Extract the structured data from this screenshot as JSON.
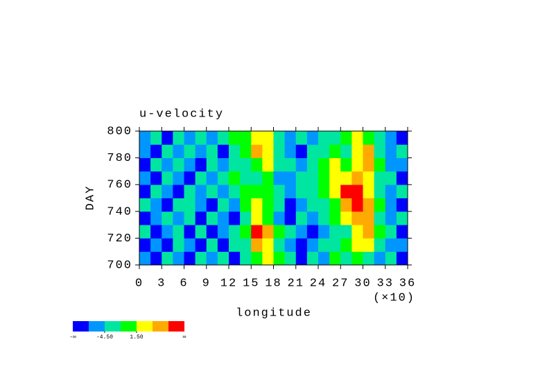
{
  "chart_data": {
    "type": "heatmap",
    "title": "u-velocity",
    "xlabel": "longitude",
    "ylabel": "DAY",
    "x_multiplier": "(×10)",
    "xlim": [
      0,
      36
    ],
    "ylim": [
      700,
      800
    ],
    "xticks": [
      0,
      3,
      6,
      9,
      12,
      15,
      18,
      21,
      24,
      27,
      30,
      33,
      36
    ],
    "yticks": [
      700,
      720,
      740,
      760,
      780,
      800
    ],
    "x": [
      0.75,
      2.25,
      3.75,
      5.25,
      6.75,
      8.25,
      9.75,
      11.25,
      12.75,
      14.25,
      15.75,
      17.25,
      18.75,
      20.25,
      21.75,
      23.25,
      24.75,
      26.25,
      27.75,
      29.25,
      30.75,
      32.25,
      33.75,
      35.25
    ],
    "y": [
      705,
      715,
      725,
      735,
      745,
      755,
      765,
      775,
      785,
      795
    ],
    "z": [
      [
        -6,
        -8,
        -3,
        -5,
        -8,
        -2,
        -5,
        -3,
        -9,
        -2,
        0,
        2,
        -1,
        -4,
        -8,
        -3,
        -5,
        -1,
        -2,
        0,
        -3,
        -6,
        -2,
        -8
      ],
      [
        -9,
        -5,
        -8,
        -3,
        -6,
        -9,
        -4,
        -8,
        -2,
        -3,
        5,
        3,
        -2,
        -5,
        -9,
        -6,
        -3,
        -4,
        -1,
        2,
        4,
        -2,
        -5,
        -6
      ],
      [
        -4,
        -9,
        -6,
        -2,
        -8,
        -4,
        -9,
        -5,
        -3,
        -1,
        8,
        6,
        0,
        -4,
        -6,
        -9,
        -5,
        -2,
        -3,
        3,
        6,
        -1,
        -4,
        -9
      ],
      [
        -8,
        -5,
        -2,
        -7,
        -4,
        -9,
        -3,
        -6,
        -8,
        -2,
        2,
        1,
        -5,
        -8,
        -3,
        -6,
        -2,
        0,
        4,
        6,
        5,
        -2,
        -6,
        -3
      ],
      [
        -3,
        -7,
        -9,
        -4,
        -2,
        -6,
        -8,
        -3,
        -5,
        -1,
        3,
        0,
        -4,
        -9,
        -7,
        -4,
        -3,
        -1,
        6,
        8,
        5,
        -1,
        -5,
        -8
      ],
      [
        -9,
        -4,
        -6,
        -8,
        -3,
        -5,
        -2,
        -7,
        -4,
        0,
        1,
        -1,
        -3,
        -6,
        -4,
        -2,
        -1,
        2,
        9,
        8,
        3,
        -2,
        -6,
        -4
      ],
      [
        -6,
        -8,
        -3,
        -5,
        -9,
        -2,
        -6,
        -4,
        -1,
        -3,
        -2,
        0,
        -5,
        -7,
        -4,
        -3,
        0,
        3,
        4,
        5,
        2,
        -3,
        -4,
        -8
      ],
      [
        -8,
        -4,
        -7,
        -2,
        -6,
        -8,
        -3,
        -5,
        -2,
        -4,
        0,
        3,
        -3,
        -4,
        -6,
        -2,
        -1,
        2,
        1,
        4,
        6,
        0,
        -5,
        -7
      ],
      [
        -5,
        -9,
        -3,
        -6,
        -4,
        -7,
        -2,
        -8,
        -3,
        -1,
        5,
        2,
        -2,
        -5,
        -8,
        -4,
        -3,
        -1,
        -2,
        3,
        5,
        -2,
        -6,
        -4
      ],
      [
        -7,
        -3,
        -8,
        -4,
        -6,
        -2,
        -5,
        -3,
        -1,
        0,
        3,
        4,
        -4,
        -6,
        -3,
        -5,
        -2,
        -4,
        0,
        2,
        -1,
        -3,
        -5,
        -8
      ]
    ],
    "levels": [
      -7.5,
      -4.5,
      -1.5,
      1.5,
      4.5,
      7.5
    ],
    "colors": [
      "#0000ff",
      "#0096ff",
      "#00e6a0",
      "#00ff00",
      "#ffff00",
      "#ffaa00",
      "#ff0000"
    ],
    "colorbar_min_label": "-∞",
    "colorbar_max_label": "∞",
    "colorbar_ticks": [
      {
        "value": -4.5,
        "label": "-4.50"
      },
      {
        "value": 1.5,
        "label": "1.50"
      }
    ]
  }
}
